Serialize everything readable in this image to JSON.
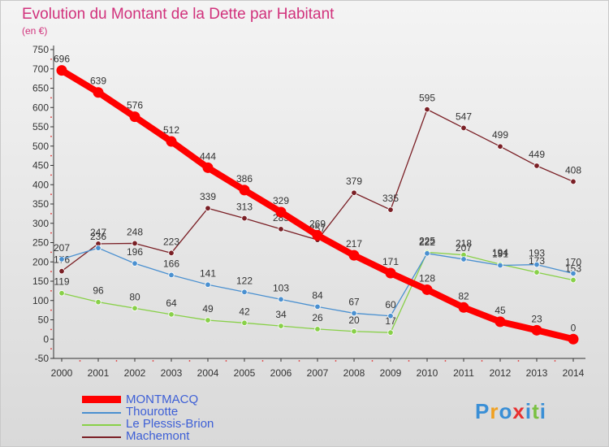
{
  "title": "Evolution du Montant de la Dette par Habitant",
  "subtitle": "(en €)",
  "logo": {
    "text": "Proxiti",
    "letters": [
      "P",
      "r",
      "o",
      "x",
      "i",
      "t",
      "i"
    ],
    "colors": [
      "#3a8fd6",
      "#f0a020",
      "#3a8fd6",
      "#e83030",
      "#3a8fd6",
      "#7ac142",
      "#3a8fd6"
    ]
  },
  "chart_data": {
    "type": "line",
    "title": "Evolution du Montant de la Dette par Habitant",
    "ylabel": "(en €)",
    "xlabel": "",
    "ylim": [
      -50,
      750
    ],
    "yticks": [
      -50,
      0,
      50,
      100,
      150,
      200,
      250,
      300,
      350,
      400,
      450,
      500,
      550,
      600,
      650,
      700,
      750
    ],
    "x": [
      "2000",
      "2001",
      "2002",
      "2003",
      "2004",
      "2005",
      "2006",
      "2007",
      "2008",
      "2009",
      "2010",
      "2011",
      "2012",
      "2013",
      "2014"
    ],
    "grid": false,
    "legend": "bottom-left",
    "series": [
      {
        "name": "MONTMACQ",
        "color": "#ff0000",
        "values": [
          696,
          639,
          576,
          512,
          444,
          386,
          329,
          269,
          217,
          171,
          128,
          82,
          45,
          23,
          0
        ]
      },
      {
        "name": "Thourotte",
        "color": "#4a90d0",
        "values": [
          207,
          236,
          196,
          166,
          141,
          122,
          103,
          84,
          67,
          60,
          222,
          207,
          191,
          193,
          170
        ]
      },
      {
        "name": "Le Plessis-Brion",
        "color": "#88d048",
        "values": [
          119,
          96,
          80,
          64,
          49,
          42,
          34,
          26,
          20,
          17,
          225,
          218,
          194,
          173,
          153
        ]
      },
      {
        "name": "Machemont",
        "color": "#7a1f25",
        "values": [
          176,
          247,
          248,
          223,
          339,
          313,
          285,
          257,
          379,
          335,
          595,
          547,
          499,
          449,
          408
        ]
      }
    ]
  }
}
